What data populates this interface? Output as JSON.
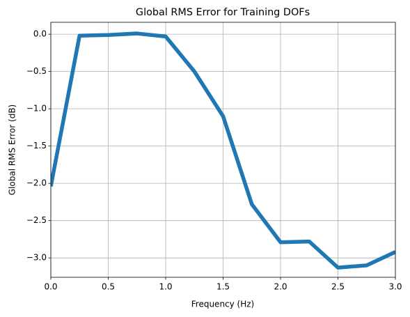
{
  "chart_data": {
    "type": "line",
    "title": "Global RMS Error for Training DOFs",
    "xlabel": "Frequency (Hz)",
    "ylabel": "Global RMS Error (dB)",
    "x": [
      0,
      0.25,
      0.5,
      0.75,
      1.0,
      1.25,
      1.5,
      1.75,
      2.0,
      2.25,
      2.5,
      2.75,
      3.0
    ],
    "series": [
      {
        "color": "#1f77b4",
        "values": [
          -2.04,
          -0.02,
          -0.01,
          0.01,
          -0.03,
          -0.5,
          -1.1,
          -2.28,
          -2.79,
          -2.78,
          -3.13,
          -3.1,
          -2.92
        ]
      }
    ],
    "xlim": [
      0,
      3
    ],
    "ylim": [
      -3.26,
      0.16
    ],
    "xticks": [
      {
        "value": 0,
        "label": "0.0"
      },
      {
        "value": 0.5,
        "label": "0.5"
      },
      {
        "value": 1,
        "label": "1.0"
      },
      {
        "value": 1.5,
        "label": "1.5"
      },
      {
        "value": 2,
        "label": "2.0"
      },
      {
        "value": 2.5,
        "label": "2.5"
      },
      {
        "value": 3,
        "label": "3.0"
      }
    ],
    "yticks": [
      {
        "value": 0,
        "label": "0.0"
      },
      {
        "value": -0.5,
        "label": "−0.5"
      },
      {
        "value": -1,
        "label": "−1.0"
      },
      {
        "value": -1.5,
        "label": "−1.5"
      },
      {
        "value": -2,
        "label": "−2.0"
      },
      {
        "value": -2.5,
        "label": "−2.5"
      },
      {
        "value": -3,
        "label": "−3.0"
      }
    ],
    "grid": true
  }
}
